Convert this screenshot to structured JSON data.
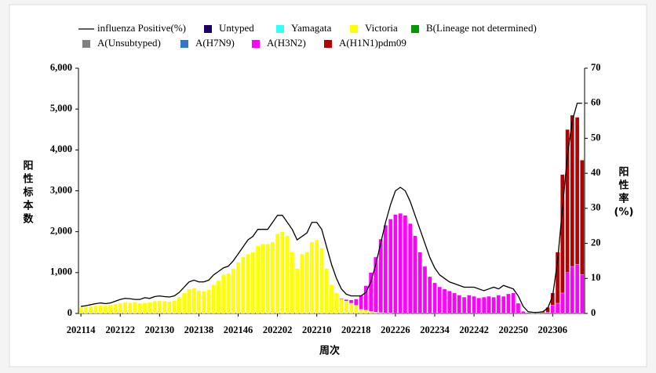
{
  "chart_data": {
    "type": "bar",
    "stacked": true,
    "y_label_chars": [
      "阳",
      "性",
      "标",
      "本",
      "数"
    ],
    "y2_label_chars": [
      "阳",
      "性",
      "率",
      "(%)"
    ],
    "x_label": "周次",
    "categories": [
      "202114",
      null,
      null,
      null,
      null,
      null,
      null,
      null,
      "202122",
      null,
      null,
      null,
      null,
      null,
      null,
      null,
      "202130",
      null,
      null,
      null,
      null,
      null,
      null,
      null,
      "202138",
      null,
      null,
      null,
      null,
      null,
      null,
      null,
      "202146",
      null,
      null,
      null,
      null,
      null,
      null,
      null,
      "202202",
      null,
      null,
      null,
      null,
      null,
      null,
      null,
      "202210",
      null,
      null,
      null,
      null,
      null,
      null,
      null,
      "202218",
      null,
      null,
      null,
      null,
      null,
      null,
      null,
      "202226",
      null,
      null,
      null,
      null,
      null,
      null,
      null,
      "202234",
      null,
      null,
      null,
      null,
      null,
      null,
      null,
      "202242",
      null,
      null,
      null,
      null,
      null,
      null,
      null,
      "202250",
      null,
      null,
      null,
      null,
      null,
      null,
      null,
      "202306",
      null,
      null,
      null,
      null,
      null,
      null
    ],
    "ylim": [
      0,
      6000
    ],
    "yticks": [
      0,
      {
        "value": 1000,
        "label": "1,000"
      },
      {
        "value": 2000,
        "label": "2,000"
      },
      {
        "value": 3000,
        "label": "3,000"
      },
      {
        "value": 4000,
        "label": "4,000"
      },
      {
        "value": 5000,
        "label": "5,000"
      },
      {
        "value": 6000,
        "label": "6,000"
      }
    ],
    "y2lim": [
      0,
      70
    ],
    "y2ticks": [
      0,
      10,
      20,
      30,
      40,
      50,
      60,
      70
    ],
    "series": [
      {
        "name": "influenza Positive(%)",
        "type": "line",
        "axis": "y2",
        "color": "#000000",
        "values": [
          2,
          2.2,
          2.5,
          2.8,
          3,
          2.8,
          3,
          3.5,
          4,
          4.3,
          4.2,
          4,
          4,
          4.5,
          4.3,
          4.8,
          5,
          4.8,
          4.7,
          5,
          6,
          7.5,
          9,
          9.5,
          9,
          9,
          9.5,
          11,
          12,
          13,
          13.5,
          15,
          17,
          19,
          21,
          22,
          24,
          24,
          24,
          26,
          28,
          28,
          26,
          24,
          21,
          22,
          23,
          26,
          26,
          24,
          19,
          14,
          10,
          7,
          5.5,
          5,
          5,
          5,
          6,
          9,
          14,
          20,
          26,
          31,
          35,
          36,
          35,
          32,
          28,
          24,
          20,
          16,
          13,
          11,
          10,
          9,
          8.5,
          8,
          7.5,
          7.5,
          7.5,
          7,
          6.5,
          7,
          7.5,
          7,
          8,
          7.5,
          7,
          5,
          2,
          0.5,
          0.3,
          0.3,
          0.5,
          1.5,
          5,
          15,
          30,
          45,
          55,
          60,
          60
        ]
      },
      {
        "name": "Untyped",
        "color": "#1a0066",
        "values": [
          0,
          0,
          0,
          0,
          0,
          0,
          0,
          0,
          0,
          0,
          0,
          0,
          0,
          0,
          0,
          0,
          0,
          0,
          0,
          0,
          0,
          0,
          0,
          0,
          0,
          0,
          0,
          0,
          0,
          0,
          0,
          0,
          0,
          0,
          0,
          0,
          0,
          0,
          0,
          0,
          0,
          0,
          0,
          0,
          0,
          0,
          0,
          0,
          0,
          0,
          0,
          0,
          0,
          0,
          0,
          0,
          0,
          0,
          0,
          0,
          0,
          0,
          0,
          0,
          0,
          0,
          0,
          0,
          0,
          0,
          0,
          0,
          0,
          0,
          0,
          0,
          0,
          0,
          0,
          0,
          0,
          0,
          0,
          0,
          0,
          0,
          0,
          0,
          0,
          0,
          0,
          0,
          0,
          0,
          0,
          0,
          0,
          0,
          0,
          0,
          0,
          0,
          0
        ]
      },
      {
        "name": "Yamagata",
        "color": "#33ffff",
        "values": [
          0,
          0,
          0,
          0,
          0,
          0,
          0,
          0,
          0,
          0,
          0,
          0,
          0,
          0,
          0,
          0,
          0,
          0,
          0,
          0,
          0,
          0,
          0,
          0,
          0,
          0,
          0,
          0,
          0,
          0,
          0,
          0,
          0,
          0,
          0,
          0,
          0,
          0,
          0,
          0,
          0,
          0,
          0,
          0,
          0,
          0,
          0,
          0,
          0,
          0,
          0,
          0,
          0,
          0,
          0,
          0,
          0,
          0,
          0,
          0,
          0,
          0,
          0,
          0,
          0,
          0,
          0,
          0,
          0,
          0,
          0,
          0,
          0,
          0,
          0,
          0,
          0,
          0,
          0,
          0,
          0,
          0,
          0,
          0,
          0,
          0,
          0,
          0,
          0,
          0,
          0,
          0,
          0,
          0,
          0,
          0,
          0,
          0,
          0,
          0,
          0,
          0,
          0
        ]
      },
      {
        "name": "Victoria",
        "color": "#ffff00",
        "values": [
          150,
          170,
          180,
          190,
          200,
          190,
          210,
          230,
          250,
          270,
          260,
          280,
          250,
          260,
          270,
          300,
          310,
          300,
          290,
          310,
          400,
          500,
          600,
          620,
          560,
          540,
          580,
          700,
          800,
          950,
          980,
          1100,
          1250,
          1380,
          1450,
          1500,
          1650,
          1700,
          1700,
          1750,
          1950,
          2000,
          1900,
          1500,
          1100,
          1450,
          1500,
          1750,
          1800,
          1600,
          1100,
          700,
          500,
          350,
          300,
          250,
          200,
          100,
          80,
          50,
          30,
          20,
          10,
          10,
          0,
          0,
          0,
          0,
          0,
          0,
          0,
          0,
          0,
          0,
          0,
          0,
          0,
          0,
          0,
          0,
          0,
          0,
          0,
          0,
          0,
          0,
          0,
          0,
          0,
          0,
          0,
          0,
          0,
          0,
          0,
          0,
          0,
          0,
          0,
          0,
          0,
          0,
          0
        ]
      },
      {
        "name": "B(Lineage not determined)",
        "color": "#009900",
        "values": [
          0,
          0,
          0,
          0,
          0,
          0,
          0,
          0,
          0,
          0,
          0,
          0,
          0,
          0,
          0,
          0,
          0,
          0,
          0,
          0,
          0,
          0,
          0,
          0,
          0,
          0,
          0,
          0,
          0,
          0,
          0,
          0,
          0,
          0,
          0,
          0,
          0,
          0,
          0,
          0,
          0,
          0,
          0,
          0,
          0,
          0,
          0,
          0,
          0,
          0,
          0,
          0,
          0,
          0,
          0,
          0,
          0,
          0,
          0,
          0,
          0,
          0,
          0,
          0,
          0,
          0,
          0,
          0,
          0,
          0,
          0,
          0,
          0,
          0,
          0,
          0,
          0,
          0,
          0,
          0,
          0,
          0,
          0,
          0,
          0,
          0,
          0,
          0,
          0,
          0,
          0,
          0,
          0,
          0,
          0,
          0,
          0,
          0,
          0,
          0,
          0,
          0,
          0
        ]
      },
      {
        "name": "A(Unsubtyped)",
        "color": "#808080",
        "values": [
          0,
          0,
          0,
          0,
          0,
          0,
          0,
          0,
          0,
          0,
          0,
          0,
          0,
          0,
          0,
          0,
          0,
          0,
          0,
          0,
          0,
          0,
          0,
          0,
          0,
          0,
          0,
          0,
          0,
          0,
          0,
          0,
          0,
          0,
          0,
          0,
          0,
          0,
          0,
          0,
          0,
          0,
          0,
          0,
          0,
          0,
          0,
          0,
          0,
          0,
          0,
          0,
          0,
          0,
          0,
          0,
          0,
          0,
          0,
          0,
          0,
          0,
          0,
          0,
          0,
          0,
          0,
          0,
          0,
          0,
          0,
          0,
          0,
          0,
          0,
          0,
          0,
          0,
          0,
          0,
          0,
          0,
          0,
          0,
          0,
          0,
          0,
          0,
          0,
          0,
          0,
          0,
          0,
          0,
          0,
          0,
          0,
          0,
          0,
          0,
          0,
          0,
          0
        ]
      },
      {
        "name": "A(H7N9)",
        "color": "#3377cc",
        "values": [
          0,
          0,
          0,
          0,
          0,
          0,
          0,
          0,
          0,
          0,
          0,
          0,
          0,
          0,
          0,
          0,
          0,
          0,
          0,
          0,
          0,
          0,
          0,
          0,
          0,
          0,
          0,
          0,
          0,
          0,
          0,
          0,
          0,
          0,
          0,
          0,
          0,
          0,
          0,
          0,
          0,
          0,
          0,
          0,
          0,
          0,
          0,
          0,
          0,
          0,
          0,
          0,
          0,
          0,
          0,
          0,
          0,
          0,
          0,
          0,
          0,
          0,
          0,
          0,
          0,
          0,
          0,
          0,
          0,
          0,
          0,
          0,
          0,
          0,
          0,
          0,
          0,
          0,
          0,
          0,
          0,
          0,
          0,
          0,
          0,
          0,
          0,
          0,
          0,
          0,
          0,
          0,
          0,
          0,
          0,
          0,
          0,
          0,
          0,
          0,
          0,
          0,
          0
        ]
      },
      {
        "name": "A(H3N2)",
        "color": "#ff00ff",
        "values": [
          0,
          0,
          0,
          0,
          0,
          0,
          0,
          0,
          0,
          0,
          0,
          0,
          0,
          0,
          0,
          0,
          0,
          0,
          0,
          0,
          0,
          0,
          0,
          0,
          0,
          0,
          0,
          0,
          0,
          0,
          0,
          0,
          0,
          0,
          0,
          0,
          0,
          0,
          0,
          0,
          0,
          0,
          0,
          0,
          0,
          0,
          0,
          0,
          0,
          0,
          0,
          0,
          0,
          20,
          40,
          80,
          150,
          350,
          600,
          950,
          1350,
          1800,
          2150,
          2300,
          2420,
          2450,
          2400,
          2200,
          1900,
          1500,
          1150,
          900,
          750,
          650,
          600,
          550,
          500,
          450,
          400,
          450,
          420,
          380,
          400,
          420,
          400,
          450,
          420,
          480,
          500,
          250,
          50,
          20,
          10,
          10,
          20,
          30,
          200,
          250,
          500,
          1000,
          1150,
          1200,
          950
        ]
      },
      {
        "name": "A(H1N1)pdm09",
        "color": "#b30000",
        "values": [
          0,
          0,
          0,
          0,
          0,
          0,
          0,
          0,
          0,
          0,
          0,
          0,
          0,
          0,
          0,
          0,
          0,
          0,
          0,
          0,
          0,
          0,
          0,
          0,
          0,
          0,
          0,
          0,
          0,
          0,
          0,
          0,
          0,
          0,
          0,
          0,
          0,
          0,
          0,
          0,
          0,
          0,
          0,
          0,
          0,
          0,
          0,
          0,
          0,
          0,
          0,
          0,
          0,
          0,
          0,
          0,
          0,
          0,
          0,
          0,
          0,
          0,
          0,
          0,
          0,
          0,
          0,
          0,
          0,
          0,
          0,
          0,
          0,
          0,
          0,
          0,
          0,
          0,
          0,
          0,
          0,
          0,
          0,
          0,
          0,
          0,
          0,
          0,
          0,
          0,
          0,
          0,
          0,
          10,
          30,
          120,
          300,
          1250,
          2900,
          3500,
          3700,
          3600,
          2800
        ]
      }
    ]
  }
}
